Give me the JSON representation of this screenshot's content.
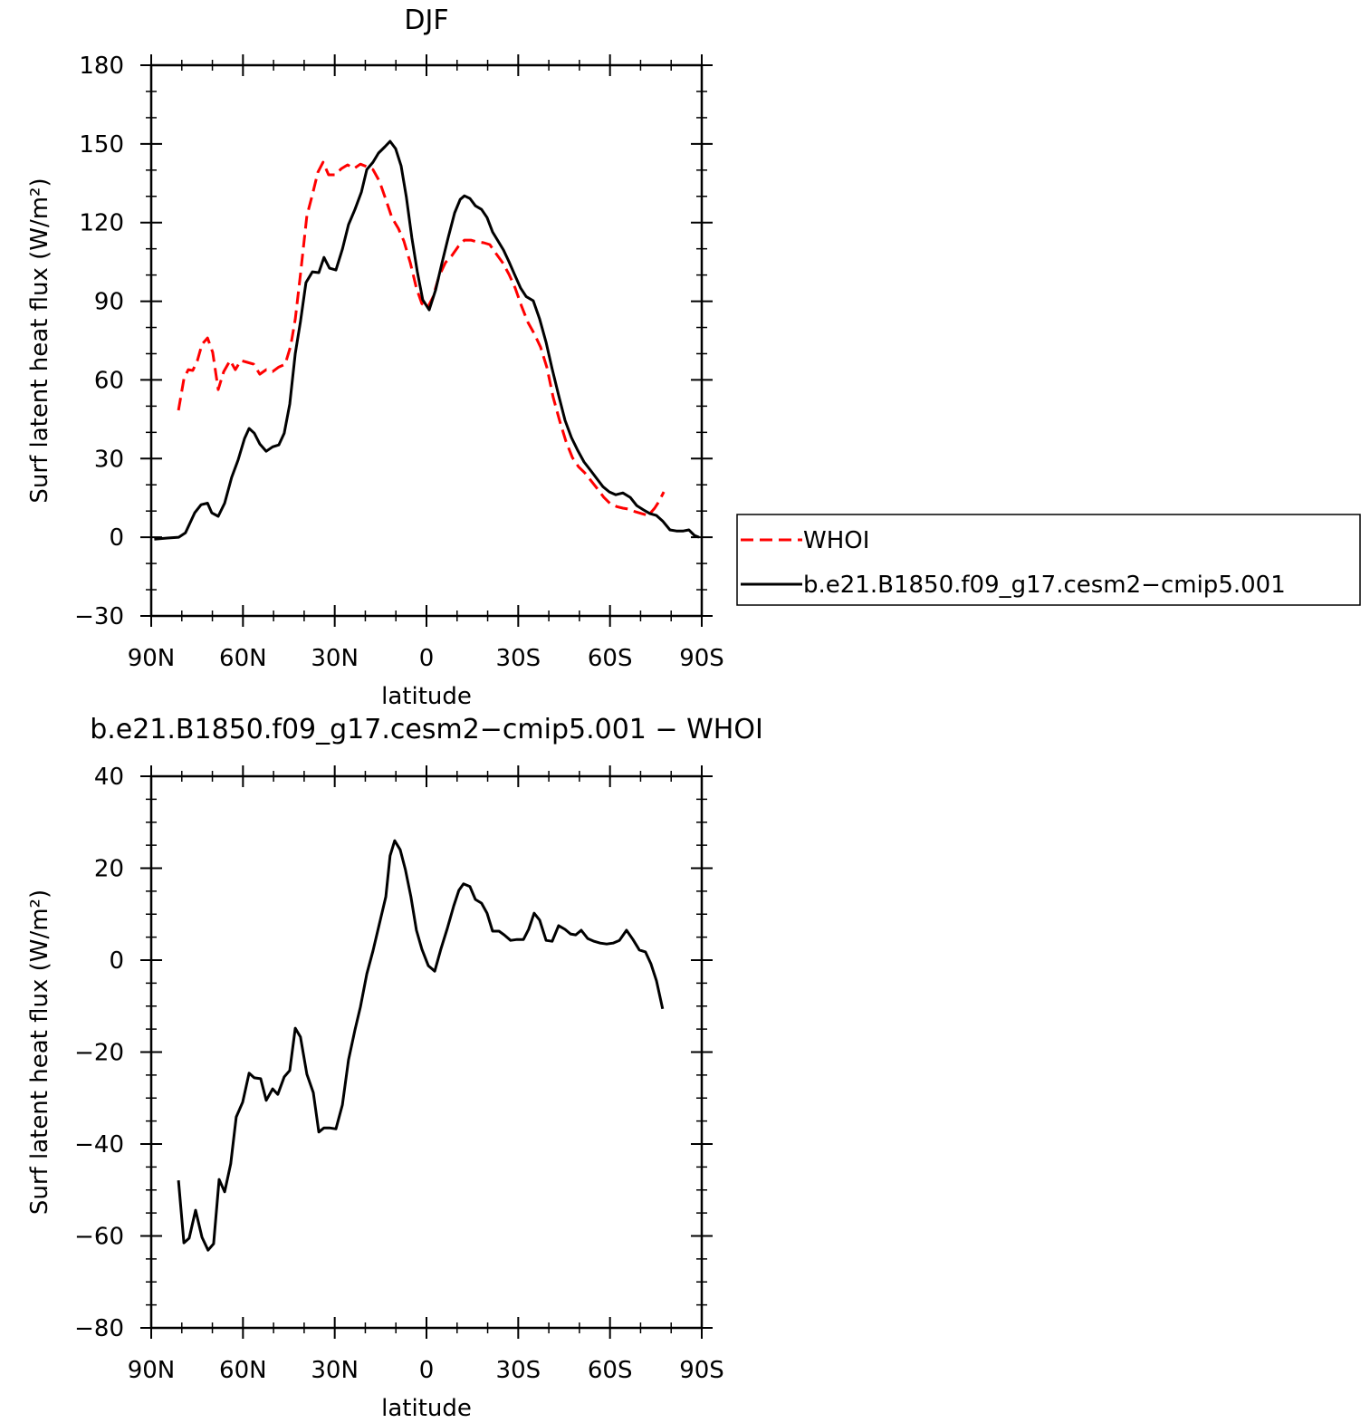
{
  "chart_data": [
    {
      "type": "line",
      "title": "DJF",
      "xlabel": "latitude",
      "ylabel": "Surf latent heat flux (W/m²)",
      "xlim": [
        90,
        -90
      ],
      "xticks": [
        {
          "value": 90,
          "label": "90N"
        },
        {
          "value": 60,
          "label": "60N"
        },
        {
          "value": 30,
          "label": "30N"
        },
        0,
        {
          "value": -30,
          "label": "30S"
        },
        {
          "value": -60,
          "label": "60S"
        },
        {
          "value": -90,
          "label": "90S"
        }
      ],
      "xminorticks": [
        80,
        70,
        50,
        40,
        20,
        10,
        -10,
        -20,
        -40,
        -50,
        -70,
        -80
      ],
      "ylim": [
        -30,
        180
      ],
      "yticks": [
        {
          "value": -30,
          "label": "−30"
        },
        0,
        30,
        60,
        90,
        120,
        150,
        180
      ],
      "yminorticks": [
        -20,
        -10,
        10,
        20,
        40,
        50,
        70,
        80,
        100,
        110,
        130,
        140,
        160,
        170
      ],
      "legend": "right",
      "series": [
        {
          "name": "WHOI",
          "color": "#ff0000",
          "dashed": true,
          "x": [
            81.1,
            79.3,
            77.9,
            76.4,
            74.9,
            73.4,
            71.6,
            69.9,
            68.1,
            66.3,
            64.2,
            62.5,
            60.7,
            58.6,
            56.5,
            54.5,
            52.4,
            50.3,
            48.3,
            46.2,
            44.4,
            42.9,
            41.2,
            39.1,
            37.3,
            35.5,
            33.8,
            32,
            29.9,
            27.8,
            25.8,
            23.7,
            21.6,
            19.5,
            17.5,
            15.4,
            13.3,
            11.3,
            9.2,
            7.4,
            5.3,
            3.3,
            1.5,
            -0.3,
            -2.1,
            -4.1,
            -6.2,
            -8.3,
            -10.4,
            -12.4,
            -14.5,
            -16.6,
            -18.7,
            -20.7,
            -22.8,
            -24.9,
            -27,
            -29,
            -31.1,
            -33.2,
            -35.2,
            -37.3,
            -39.4,
            -41.4,
            -43.5,
            -45.6,
            -47.7,
            -49.7,
            -51.8,
            -53.9,
            -56,
            -58,
            -60.1,
            -62.2,
            -64.2,
            -66.3,
            -68.4,
            -70.4,
            -72.5,
            -74.6,
            -76.1,
            -77.6
          ],
          "values": [
            48.4,
            60.4,
            63.9,
            63.6,
            67.4,
            73.6,
            76,
            70.5,
            56.3,
            63.2,
            67.4,
            63.9,
            67.4,
            66.7,
            66,
            62.2,
            63.9,
            63.2,
            64.9,
            66,
            72.9,
            83.2,
            100.2,
            122.6,
            130.6,
            139.2,
            143,
            138.2,
            138.2,
            140.6,
            142,
            140.6,
            142.3,
            141.3,
            140.2,
            135.8,
            128.8,
            121.9,
            117.8,
            113,
            104.7,
            95,
            89.1,
            87.4,
            91.5,
            99.5,
            104.7,
            107.4,
            110.9,
            113.3,
            113.3,
            112.6,
            112.3,
            111.6,
            108.1,
            104.7,
            100.2,
            95,
            88.1,
            81.9,
            77.7,
            72.5,
            64.6,
            53.5,
            44.6,
            36.6,
            30.4,
            26.9,
            24.5,
            21.4,
            18.3,
            15.2,
            12.8,
            11.7,
            11.1,
            10.7,
            9.7,
            9,
            8.3,
            11.1,
            13.8,
            17.3
          ]
        },
        {
          "name": "b.e21.B1850.f09_g17.cesm2−cmip5.001",
          "color": "#000000",
          "dashed": false,
          "x": [
            89,
            84.7,
            81,
            78.8,
            75.8,
            73.7,
            71.6,
            70.2,
            68.1,
            66,
            63.7,
            61.6,
            59.5,
            58,
            56.3,
            54.5,
            52.4,
            50.3,
            48.3,
            46.5,
            44.7,
            42.9,
            41.2,
            39.4,
            37.3,
            35.2,
            33.5,
            31.7,
            29.6,
            27.5,
            25.5,
            23.4,
            21.3,
            19.5,
            17.5,
            15.7,
            13.6,
            11.9,
            10.1,
            8.3,
            6.6,
            4.8,
            3,
            1.2,
            -0.9,
            -3,
            -5,
            -7.1,
            -9.2,
            -11,
            -12.4,
            -14.2,
            -16,
            -18,
            -19.8,
            -21.6,
            -23.4,
            -25.2,
            -27,
            -28.7,
            -30.8,
            -32.6,
            -34.9,
            -37,
            -39.1,
            -41.1,
            -43.2,
            -45.3,
            -47.4,
            -49.4,
            -51.5,
            -53.6,
            -55.6,
            -57.7,
            -59.8,
            -61.9,
            -64.2,
            -66.6,
            -68.7,
            -71,
            -73.1,
            -75.2,
            -77.2,
            -79.6,
            -81.7,
            -84,
            -85.8,
            -87.6,
            -89.1
          ],
          "values": [
            -0.7,
            -0.3,
            0,
            1.7,
            9.3,
            12.4,
            13,
            9.3,
            8,
            13,
            22.8,
            29.4,
            37.6,
            41.5,
            39.7,
            35.6,
            32.8,
            34.5,
            35.2,
            39.7,
            50.8,
            70.1,
            82.2,
            97.1,
            101.2,
            100.9,
            106.7,
            102.6,
            101.9,
            109.8,
            119.2,
            125,
            131.6,
            140.2,
            143,
            146.5,
            148.9,
            151,
            148.2,
            141.6,
            129.9,
            114.3,
            101.2,
            90.5,
            86.7,
            94.3,
            104.3,
            114.3,
            123.7,
            128.8,
            130.2,
            129.2,
            126.4,
            125,
            121.9,
            116.4,
            113,
            109.5,
            105,
            100.5,
            95,
            91.8,
            90.2,
            83.2,
            74.3,
            64.2,
            54.2,
            44.6,
            38,
            33.2,
            28.7,
            25.6,
            22.5,
            19.3,
            17.3,
            16.2,
            16.9,
            15.2,
            12.1,
            10.4,
            9,
            8.3,
            6.2,
            2.8,
            2.4,
            2.4,
            2.8,
            0.7,
            0
          ]
        }
      ]
    },
    {
      "type": "line",
      "title": "b.e21.B1850.f09_g17.cesm2−cmip5.001 − WHOI",
      "xlabel": "latitude",
      "ylabel": "Surf latent heat flux (W/m²)",
      "xlim": [
        90,
        -90
      ],
      "xticks": [
        {
          "value": 90,
          "label": "90N"
        },
        {
          "value": 60,
          "label": "60N"
        },
        {
          "value": 30,
          "label": "30N"
        },
        0,
        {
          "value": -30,
          "label": "30S"
        },
        {
          "value": -60,
          "label": "60S"
        },
        {
          "value": -90,
          "label": "90S"
        }
      ],
      "xminorticks": [
        80,
        70,
        50,
        40,
        20,
        10,
        -10,
        -20,
        -40,
        -50,
        -70,
        -80
      ],
      "ylim": [
        -80,
        40
      ],
      "yticks": [
        {
          "value": -80,
          "label": "−80"
        },
        {
          "value": -60,
          "label": "−60"
        },
        {
          "value": -40,
          "label": "−40"
        },
        {
          "value": -20,
          "label": "−20"
        },
        0,
        20,
        40
      ],
      "yminorticks": [
        -75,
        -70,
        -65,
        -55,
        -50,
        -45,
        -35,
        -30,
        -25,
        -15,
        -10,
        -5,
        5,
        10,
        15,
        25,
        30,
        35
      ],
      "series": [
        {
          "color": "#000000",
          "dashed": false,
          "x": [
            81.1,
            79.3,
            77.6,
            75.5,
            73.4,
            71.4,
            69.6,
            67.8,
            66,
            64,
            62.2,
            60.1,
            58,
            56.3,
            54.2,
            52.4,
            50.3,
            48.6,
            46.5,
            44.7,
            42.9,
            41.2,
            39.1,
            37,
            35.2,
            33.5,
            31.7,
            29.6,
            27.5,
            25.5,
            23.4,
            21.6,
            19.5,
            17.5,
            15.4,
            13.3,
            11.9,
            10.4,
            8.6,
            6.9,
            5.1,
            3.3,
            1.5,
            -0.6,
            -2.7,
            -4.7,
            -6.8,
            -8.9,
            -10.6,
            -12.1,
            -14.2,
            -16,
            -18,
            -19.8,
            -21.6,
            -23.7,
            -25.4,
            -27.5,
            -29.6,
            -31.7,
            -33.4,
            -35.2,
            -37,
            -39.1,
            -41.1,
            -43.2,
            -45.3,
            -47.1,
            -48.8,
            -50.6,
            -52.7,
            -54.8,
            -56.8,
            -58.9,
            -61,
            -63.1,
            -65.4,
            -67.5,
            -69.6,
            -71.6,
            -73.4,
            -75.2,
            -77.2
          ],
          "values": [
            -47.9,
            -61.5,
            -60.5,
            -54.4,
            -60.3,
            -63.1,
            -61.7,
            -47.7,
            -50.4,
            -44.3,
            -34.1,
            -30.9,
            -24.6,
            -25.6,
            -25.8,
            -30.5,
            -28,
            -29.2,
            -25.4,
            -24,
            -14.8,
            -16.7,
            -24.8,
            -28.8,
            -37.4,
            -36.5,
            -36.5,
            -36.7,
            -31.5,
            -21.7,
            -15.2,
            -10.2,
            -3,
            2,
            7.9,
            13.8,
            22.7,
            26,
            24,
            19.7,
            13.8,
            6.5,
            2.4,
            -1.2,
            -2.4,
            2.4,
            6.9,
            11.8,
            15.2,
            16.6,
            16,
            13.2,
            12.4,
            10.2,
            6.3,
            6.3,
            5.5,
            4.3,
            4.5,
            4.5,
            6.7,
            10.2,
            8.7,
            4.3,
            4.1,
            7.5,
            6.7,
            5.7,
            5.5,
            6.5,
            4.7,
            4.1,
            3.7,
            3.5,
            3.7,
            4.3,
            6.5,
            4.5,
            2.2,
            1.8,
            -0.8,
            -4.5,
            -10.6
          ]
        }
      ]
    }
  ]
}
